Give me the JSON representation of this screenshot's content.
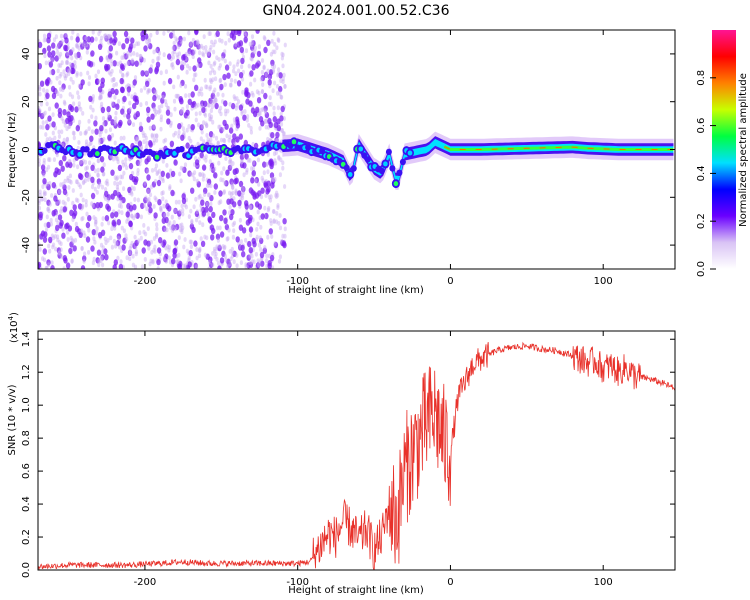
{
  "page_title": "GN04.2024.001.00.52.C36",
  "chart_data": [
    {
      "type": "heatmap",
      "xlabel": "Height of straight line (km)",
      "ylabel": "Frequency (Hz)",
      "xlim": [
        -270,
        147
      ],
      "ylim": [
        -50,
        50
      ],
      "xticks": [
        -200,
        -100,
        0,
        100
      ],
      "yticks": [
        -40,
        -20,
        0,
        20,
        40
      ],
      "colorbar": {
        "label": "Normalized spectral amplitude",
        "range": [
          0,
          1
        ],
        "ticks": [
          "0.0",
          "0.2",
          "0.4",
          "0.6",
          "0.8"
        ],
        "colors": [
          "#ffffff",
          "#d9c3f5",
          "#6a00ff",
          "#0000ff",
          "#00e0ff",
          "#00ff40",
          "#c8ff00",
          "#ff8000",
          "#ff0000",
          "#ff1493"
        ]
      },
      "ridge": [
        {
          "x": -265,
          "f": 1.5
        },
        {
          "x": -240,
          "f": -1.0
        },
        {
          "x": -220,
          "f": 0.5
        },
        {
          "x": -200,
          "f": -2.0
        },
        {
          "x": -180,
          "f": -1.5
        },
        {
          "x": -160,
          "f": -0.5
        },
        {
          "x": -140,
          "f": -1.0
        },
        {
          "x": -120,
          "f": 1.0
        },
        {
          "x": -100,
          "f": 2.0
        },
        {
          "x": -90,
          "f": 0.0
        },
        {
          "x": -80,
          "f": -2.0
        },
        {
          "x": -70,
          "f": -5.0
        },
        {
          "x": -65,
          "f": -12.0
        },
        {
          "x": -60,
          "f": 2.0
        },
        {
          "x": -50,
          "f": -8.0
        },
        {
          "x": -45,
          "f": -10.0
        },
        {
          "x": -40,
          "f": -2.0
        },
        {
          "x": -35,
          "f": -15.0
        },
        {
          "x": -30,
          "f": -2.0
        },
        {
          "x": -15,
          "f": 0.0
        },
        {
          "x": -10,
          "f": 3.0
        },
        {
          "x": 0,
          "f": 0.0
        },
        {
          "x": 20,
          "f": 0.0
        },
        {
          "x": 50,
          "f": 0.5
        },
        {
          "x": 80,
          "f": 1.0
        },
        {
          "x": 90,
          "f": 0.5
        },
        {
          "x": 110,
          "f": 0.0
        },
        {
          "x": 147,
          "f": 0.0
        }
      ]
    },
    {
      "type": "line",
      "xlabel": "Height of straight line (km)",
      "ylabel": "SNR (10 * v/v)",
      "y_multiplier": "(x10",
      "y_multiplier_exp": "4",
      "y_multiplier_close": ")",
      "xlim": [
        -270,
        147
      ],
      "ylim": [
        0,
        1.45
      ],
      "xticks": [
        -200,
        -100,
        0,
        100
      ],
      "yticks": [
        "0.0",
        "0.2",
        "0.4",
        "0.6",
        "0.8",
        "1.0",
        "1.2",
        "1.4"
      ],
      "color": "#e8312a",
      "series": [
        {
          "x": [
            -270,
            -250,
            -230,
            -210,
            -190,
            -175,
            -160,
            -140,
            -120,
            -100,
            -92,
            -85,
            -80,
            -75,
            -70,
            -65,
            -60,
            -55,
            -50,
            -45,
            -40,
            -35,
            -30,
            -25,
            -20,
            -15,
            -10,
            -5,
            0,
            5,
            10,
            15,
            20,
            30,
            40,
            50,
            60,
            70,
            80,
            85,
            90,
            95,
            100,
            105,
            110,
            115,
            120,
            130,
            140,
            147
          ],
          "y": [
            0.02,
            0.03,
            0.03,
            0.03,
            0.04,
            0.05,
            0.04,
            0.04,
            0.04,
            0.04,
            0.05,
            0.15,
            0.22,
            0.2,
            0.3,
            0.25,
            0.18,
            0.25,
            0.12,
            0.2,
            0.4,
            0.3,
            0.6,
            0.7,
            0.8,
            0.9,
            0.95,
            0.8,
            0.7,
            1.05,
            1.15,
            1.25,
            1.28,
            1.33,
            1.35,
            1.36,
            1.34,
            1.33,
            1.3,
            1.28,
            1.26,
            1.27,
            1.22,
            1.24,
            1.2,
            1.23,
            1.18,
            1.16,
            1.13,
            1.1
          ]
        }
      ]
    }
  ]
}
